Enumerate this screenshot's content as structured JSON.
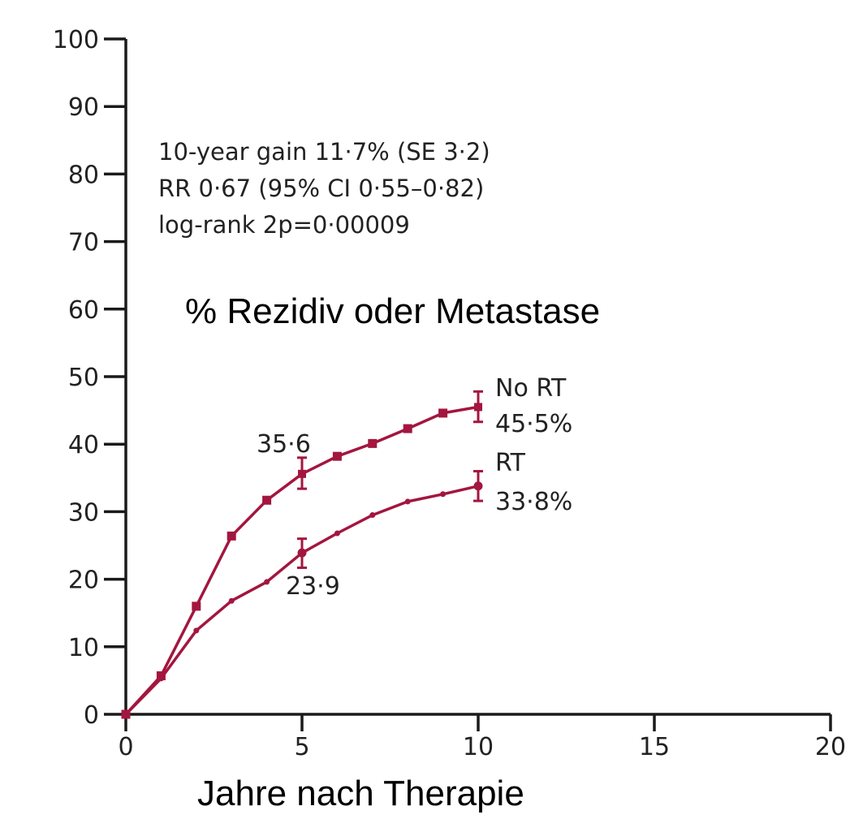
{
  "chart_data": {
    "type": "line",
    "title": "",
    "xlabel": "Jahre nach Therapie",
    "ylabel": "% Rezidiv oder Metastase",
    "xlim": [
      0,
      20
    ],
    "ylim": [
      0,
      100
    ],
    "xticks": [
      0,
      5,
      10,
      15,
      20
    ],
    "yticks": [
      0,
      10,
      20,
      30,
      40,
      50,
      60,
      70,
      80,
      90,
      100
    ],
    "grid": false,
    "annotation_lines": [
      "10-year gain 11·7% (SE 3·2)",
      "RR 0·67 (95% CI 0·55–0·82)",
      "log-rank 2p=0·00009"
    ],
    "color": "#a3163f",
    "series": [
      {
        "name": "No RT",
        "end_label": "45·5%",
        "marker": "square",
        "x": [
          0,
          1,
          2,
          3,
          4,
          5,
          6,
          7,
          8,
          9,
          10
        ],
        "y": [
          0,
          5.7,
          16.0,
          26.4,
          31.7,
          35.6,
          38.2,
          40.1,
          42.3,
          44.6,
          45.5
        ],
        "error_bars": [
          {
            "x": 5,
            "y": 35.6,
            "low": 33.4,
            "high": 38.0
          },
          {
            "x": 10,
            "y": 45.5,
            "low": 43.3,
            "high": 47.8
          }
        ]
      },
      {
        "name": "RT",
        "end_label": "33·8%",
        "marker": "circle",
        "x": [
          0,
          1,
          2,
          3,
          4,
          5,
          6,
          7,
          8,
          9,
          10
        ],
        "y": [
          0,
          5.3,
          12.4,
          16.8,
          19.6,
          23.9,
          26.8,
          29.5,
          31.5,
          32.6,
          33.8
        ],
        "error_bars": [
          {
            "x": 5,
            "y": 23.9,
            "low": 21.7,
            "high": 26.0
          },
          {
            "x": 10,
            "y": 33.8,
            "low": 31.6,
            "high": 36.0
          }
        ]
      }
    ],
    "data_labels": [
      {
        "text": "35·6",
        "x": 5,
        "y": 35.6,
        "position": "above"
      },
      {
        "text": "23·9",
        "x": 5,
        "y": 23.9,
        "position": "below"
      }
    ]
  }
}
